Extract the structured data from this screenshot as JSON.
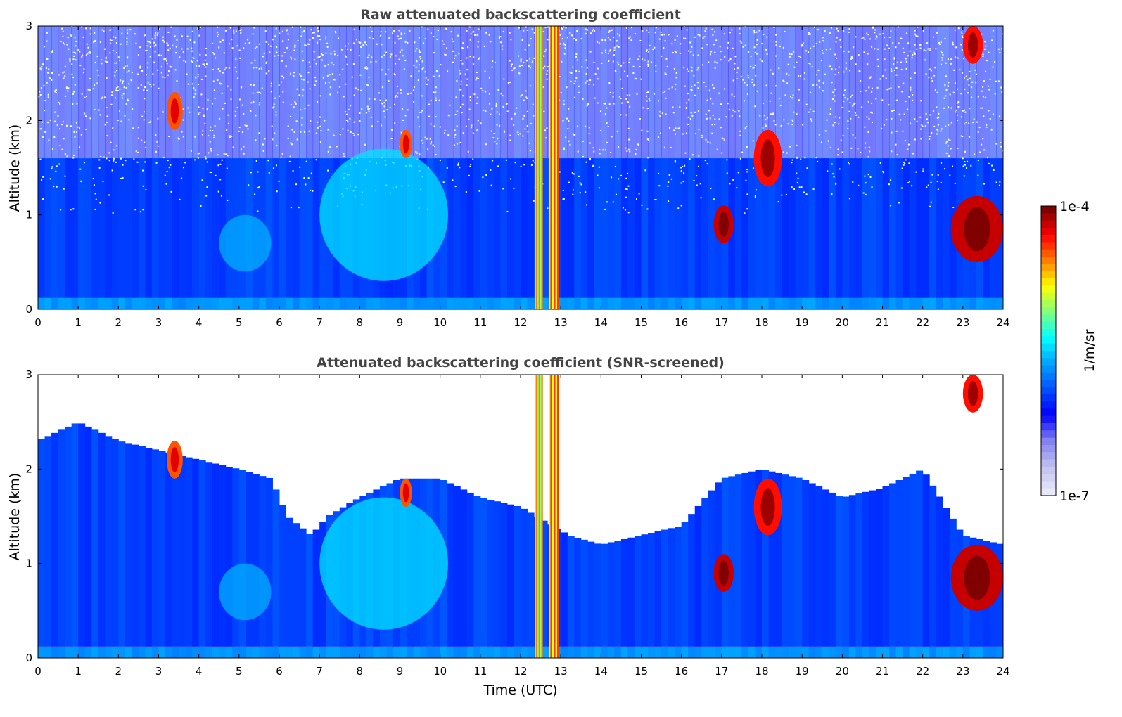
{
  "chart_data": [
    {
      "type": "heatmap",
      "title": "Raw attenuated backscattering coefficient",
      "xlabel": "",
      "ylabel": "Altitude (km)",
      "xlim": [
        0,
        24
      ],
      "ylim": [
        0,
        3
      ],
      "x_ticks": [
        "0",
        "1",
        "2",
        "3",
        "4",
        "5",
        "6",
        "7",
        "8",
        "9",
        "10",
        "11",
        "12",
        "13",
        "14",
        "15",
        "16",
        "17",
        "18",
        "19",
        "20",
        "21",
        "22",
        "23",
        "24"
      ],
      "y_ticks": [
        "0",
        "1",
        "2",
        "3"
      ],
      "screened": false,
      "features": [
        {
          "kind": "aerosol_layer",
          "x_range": [
            4.5,
            5.8
          ],
          "y_range": [
            0.4,
            1.0
          ],
          "level": 0.35
        },
        {
          "kind": "aerosol_layer",
          "x_range": [
            7.0,
            10.2
          ],
          "y_range": [
            0.3,
            1.7
          ],
          "level": 0.4
        },
        {
          "kind": "cloud",
          "x_range": [
            3.2,
            3.6
          ],
          "y_range": [
            1.9,
            2.3
          ],
          "level": 0.85
        },
        {
          "kind": "cloud",
          "x_range": [
            9.0,
            9.3
          ],
          "y_range": [
            1.6,
            1.9
          ],
          "level": 0.85
        },
        {
          "kind": "precip_column",
          "x_range": [
            12.35,
            12.55
          ],
          "y_range": [
            0,
            3
          ],
          "level": 0.7
        },
        {
          "kind": "precip_column",
          "x_range": [
            12.7,
            12.95
          ],
          "y_range": [
            0,
            3
          ],
          "level": 0.75
        },
        {
          "kind": "cloud",
          "x_range": [
            16.8,
            17.3
          ],
          "y_range": [
            0.7,
            1.1
          ],
          "level": 0.95
        },
        {
          "kind": "cloud",
          "x_range": [
            17.8,
            18.5
          ],
          "y_range": [
            1.3,
            1.9
          ],
          "level": 0.9
        },
        {
          "kind": "cloud",
          "x_range": [
            22.7,
            24.0
          ],
          "y_range": [
            0.5,
            1.2
          ],
          "level": 0.95
        },
        {
          "kind": "cloud",
          "x_range": [
            23.0,
            23.5
          ],
          "y_range": [
            2.6,
            3.0
          ],
          "level": 0.9
        }
      ]
    },
    {
      "type": "heatmap",
      "title": "Attenuated backscattering coefficient (SNR-screened)",
      "xlabel": "Time (UTC)",
      "ylabel": "Altitude (km)",
      "xlim": [
        0,
        24
      ],
      "ylim": [
        0,
        3
      ],
      "x_ticks": [
        "0",
        "1",
        "2",
        "3",
        "4",
        "5",
        "6",
        "7",
        "8",
        "9",
        "10",
        "11",
        "12",
        "13",
        "14",
        "15",
        "16",
        "17",
        "18",
        "19",
        "20",
        "21",
        "22",
        "23",
        "24"
      ],
      "y_ticks": [
        "0",
        "1",
        "2",
        "3"
      ],
      "screened": true,
      "features": [
        {
          "kind": "aerosol_layer",
          "x_range": [
            4.5,
            5.8
          ],
          "y_range": [
            0.4,
            1.0
          ],
          "level": 0.35
        },
        {
          "kind": "aerosol_layer",
          "x_range": [
            7.0,
            10.2
          ],
          "y_range": [
            0.3,
            1.7
          ],
          "level": 0.4
        },
        {
          "kind": "cloud",
          "x_range": [
            3.2,
            3.6
          ],
          "y_range": [
            1.9,
            2.3
          ],
          "level": 0.85
        },
        {
          "kind": "cloud",
          "x_range": [
            9.0,
            9.3
          ],
          "y_range": [
            1.6,
            1.9
          ],
          "level": 0.85
        },
        {
          "kind": "precip_column",
          "x_range": [
            12.35,
            12.55
          ],
          "y_range": [
            0,
            3
          ],
          "level": 0.7
        },
        {
          "kind": "precip_column",
          "x_range": [
            12.7,
            12.95
          ],
          "y_range": [
            0,
            3
          ],
          "level": 0.75
        },
        {
          "kind": "cloud",
          "x_range": [
            16.8,
            17.3
          ],
          "y_range": [
            0.7,
            1.1
          ],
          "level": 0.95
        },
        {
          "kind": "cloud",
          "x_range": [
            17.8,
            18.5
          ],
          "y_range": [
            1.3,
            1.9
          ],
          "level": 0.9
        },
        {
          "kind": "cloud",
          "x_range": [
            22.7,
            24.0
          ],
          "y_range": [
            0.5,
            1.2
          ],
          "level": 0.95
        },
        {
          "kind": "cloud",
          "x_range": [
            23.0,
            23.5
          ],
          "y_range": [
            2.6,
            3.0
          ],
          "level": 0.9
        }
      ],
      "signal_top_km": [
        [
          0,
          2.3
        ],
        [
          1,
          2.5
        ],
        [
          2,
          2.3
        ],
        [
          3,
          2.2
        ],
        [
          4,
          2.1
        ],
        [
          5,
          2.0
        ],
        [
          5.8,
          1.9
        ],
        [
          6.2,
          1.5
        ],
        [
          6.8,
          1.3
        ],
        [
          7.2,
          1.5
        ],
        [
          8,
          1.7
        ],
        [
          9,
          1.9
        ],
        [
          10,
          1.9
        ],
        [
          11,
          1.7
        ],
        [
          12,
          1.6
        ],
        [
          13.2,
          1.3
        ],
        [
          14,
          1.2
        ],
        [
          15,
          1.3
        ],
        [
          16,
          1.4
        ],
        [
          17,
          1.9
        ],
        [
          18,
          2.0
        ],
        [
          19,
          1.9
        ],
        [
          20,
          1.7
        ],
        [
          21,
          1.8
        ],
        [
          22,
          2.0
        ],
        [
          23,
          1.3
        ],
        [
          24,
          1.2
        ]
      ]
    }
  ],
  "colorbar": {
    "max_label": "1e-4",
    "min_label": "1e-7",
    "unit_label": "1/m/sr",
    "colormap": "jet",
    "colors": [
      "#e8e8f8",
      "#c0c0f0",
      "#8080f0",
      "#0000ff",
      "#0050ff",
      "#00a0ff",
      "#00ffff",
      "#80ff80",
      "#ffff00",
      "#ff8000",
      "#ff0000",
      "#800000"
    ]
  },
  "background_color": "#ffffff"
}
